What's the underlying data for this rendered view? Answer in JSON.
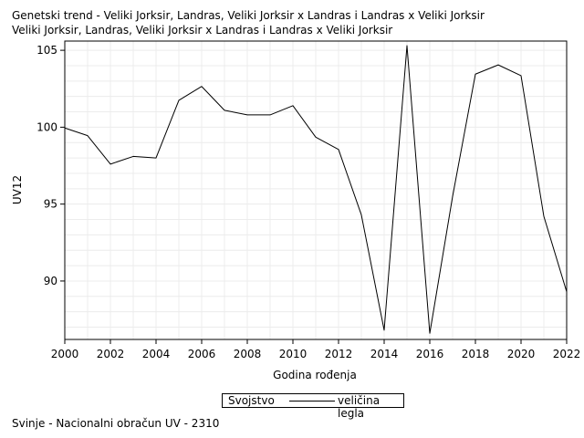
{
  "chart_data": {
    "type": "line",
    "title": "Genetski trend - Veliki Jorksir, Landras, Veliki Jorksir x Landras i Landras x Veliki Jorksir",
    "subtitle": "Veliki Jorksir, Landras, Veliki Jorksir x Landras i Landras x Veliki Jorksir",
    "xlabel": "Godina rođenja",
    "ylabel": "UV12",
    "xlim": [
      2000,
      2022
    ],
    "ylim": [
      86.2,
      105.6
    ],
    "xticks": [
      2000,
      2002,
      2004,
      2006,
      2008,
      2010,
      2012,
      2014,
      2016,
      2018,
      2020,
      2022
    ],
    "yticks": [
      90,
      95,
      100,
      105
    ],
    "grid": true,
    "legend": {
      "title": "Svojstvo",
      "placement": "bottom-center"
    },
    "series": [
      {
        "name": "veličina legla",
        "color": "#000000",
        "x": [
          2000,
          2001,
          2002,
          2003,
          2004,
          2005,
          2006,
          2007,
          2008,
          2009,
          2010,
          2011,
          2012,
          2013,
          2014,
          2015,
          2016,
          2017,
          2018,
          2019,
          2020,
          2021,
          2022
        ],
        "y": [
          99.95,
          99.45,
          97.6,
          98.1,
          98.0,
          101.75,
          102.65,
          101.1,
          100.8,
          100.8,
          101.4,
          99.35,
          98.55,
          94.3,
          86.8,
          105.3,
          86.6,
          95.5,
          103.45,
          104.05,
          103.35,
          94.2,
          89.3
        ]
      }
    ]
  },
  "footnote": "Svinje - Nacionalni obračun UV - 2310"
}
